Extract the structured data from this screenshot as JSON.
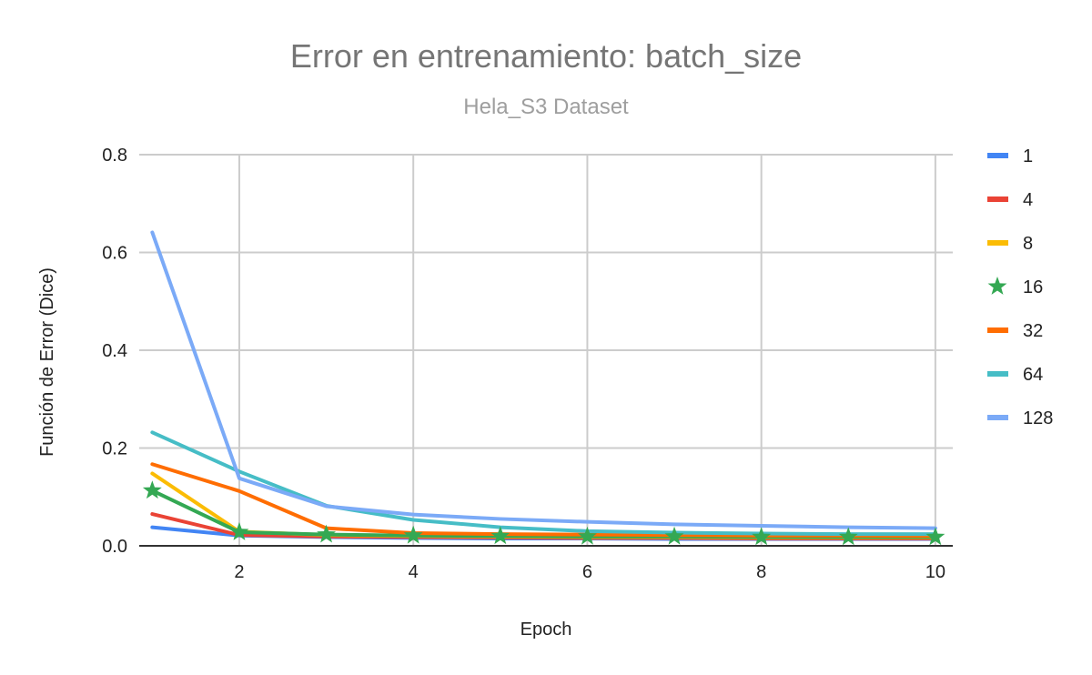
{
  "chart_data": {
    "type": "line",
    "title": "Error en entrenamiento: batch_size",
    "subtitle": "Hela_S3 Dataset",
    "xlabel": "Epoch",
    "ylabel": "Función de Error (Dice)",
    "xlim": [
      0.85,
      10.2
    ],
    "ylim": [
      0,
      0.8
    ],
    "x_ticks": [
      2,
      4,
      6,
      8,
      10
    ],
    "x_tick_labels": [
      "2",
      "4",
      "6",
      "8",
      "10"
    ],
    "y_ticks": [
      0,
      0.2,
      0.4,
      0.6,
      0.8
    ],
    "y_tick_labels": [
      "0.0",
      "0.2",
      "0.4",
      "0.6",
      "0.8"
    ],
    "grid": true,
    "legend_position": "right",
    "x": [
      1,
      2,
      3,
      4,
      5,
      6,
      7,
      8,
      9,
      10
    ],
    "series": [
      {
        "name": "1",
        "color": "#4285f4",
        "marker": "none",
        "values": [
          0.038,
          0.021,
          0.018,
          0.016,
          0.015,
          0.015,
          0.014,
          0.014,
          0.014,
          0.014
        ]
      },
      {
        "name": "4",
        "color": "#ea4335",
        "marker": "none",
        "values": [
          0.065,
          0.022,
          0.019,
          0.018,
          0.017,
          0.016,
          0.016,
          0.015,
          0.015,
          0.015
        ]
      },
      {
        "name": "8",
        "color": "#fbbc04",
        "marker": "none",
        "values": [
          0.148,
          0.029,
          0.022,
          0.02,
          0.019,
          0.018,
          0.018,
          0.017,
          0.017,
          0.017
        ]
      },
      {
        "name": "16",
        "color": "#34a853",
        "marker": "star",
        "values": [
          0.113,
          0.028,
          0.023,
          0.021,
          0.02,
          0.019,
          0.019,
          0.018,
          0.018,
          0.018
        ]
      },
      {
        "name": "32",
        "color": "#ff6d01",
        "marker": "none",
        "values": [
          0.167,
          0.112,
          0.036,
          0.026,
          0.024,
          0.023,
          0.022,
          0.021,
          0.021,
          0.02
        ]
      },
      {
        "name": "64",
        "color": "#46bdc6",
        "marker": "none",
        "values": [
          0.232,
          0.152,
          0.082,
          0.053,
          0.038,
          0.03,
          0.027,
          0.025,
          0.024,
          0.024
        ]
      },
      {
        "name": "128",
        "color": "#7baaf7",
        "marker": "none",
        "values": [
          0.641,
          0.138,
          0.081,
          0.064,
          0.055,
          0.049,
          0.044,
          0.041,
          0.038,
          0.036
        ]
      }
    ]
  }
}
